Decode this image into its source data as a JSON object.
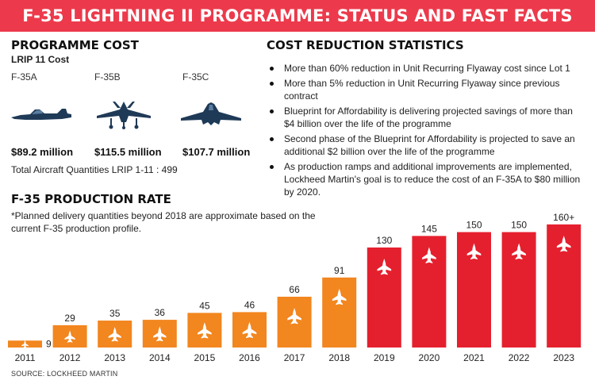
{
  "banner": {
    "title": "F-35 LIGHTNING II PROGRAMME: STATUS AND FAST FACTS"
  },
  "programme_cost": {
    "title": "PROGRAMME COST",
    "subtitle": "LRIP 11 Cost",
    "variants": [
      {
        "name": "F-35A",
        "price": "$89.2 million",
        "icon": "f35a-side-view-icon"
      },
      {
        "name": "F-35B",
        "price": "$115.5 million",
        "icon": "f35b-front-view-icon"
      },
      {
        "name": "F-35C",
        "price": "$107.7 million",
        "icon": "f35c-top-view-icon"
      }
    ],
    "total_quantity": "Total Aircraft Quantities LRIP 1-11 : 499"
  },
  "cost_reduction": {
    "title": "COST REDUCTION STATISTICS",
    "items": [
      "More than 60% reduction in Unit Recurring Flyaway cost since Lot 1",
      "More than 5% reduction in Unit Recurring Flyaway since previous contract",
      "Blueprint for Affordability is delivering projected savings of more than $4 billion over the life of the programme",
      "Second phase of the Blueprint for Affordability is projected to save an additional $2 billion over the life of the programme",
      "As production ramps and additional improvements are implemented, Lockheed Martin's goal is to reduce the cost of an F-35A to $80 million by 2020."
    ]
  },
  "production_rate": {
    "title": "F-35 PRODUCTION RATE",
    "note": "*Planned delivery quantities beyond 2018 are approximate based on the current F-35 production profile."
  },
  "colors": {
    "banner": "#ec3a4c",
    "orange": "#f2861f",
    "red": "#e5202e",
    "navy": "#1f3a57"
  },
  "chart_data": {
    "type": "bar",
    "title": "F-35 PRODUCTION RATE",
    "categories": [
      "2011",
      "2012",
      "2013",
      "2014",
      "2015",
      "2016",
      "2017",
      "2018",
      "2019",
      "2020",
      "2021",
      "2022",
      "2023"
    ],
    "values": [
      9,
      29,
      35,
      36,
      45,
      46,
      66,
      91,
      130,
      145,
      150,
      150,
      160
    ],
    "labels": [
      "9",
      "29",
      "35",
      "36",
      "45",
      "46",
      "66",
      "91",
      "130",
      "145",
      "150",
      "150",
      "160+"
    ],
    "bar_colors": [
      "orange",
      "orange",
      "orange",
      "orange",
      "orange",
      "orange",
      "orange",
      "orange",
      "red",
      "red",
      "red",
      "red",
      "red"
    ],
    "ylim": [
      0,
      165
    ],
    "xlabel": "",
    "ylabel": "",
    "source": "SOURCE: LOCKHEED MARTIN"
  }
}
